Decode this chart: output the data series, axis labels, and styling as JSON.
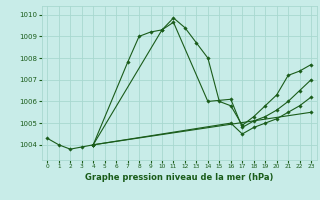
{
  "background_color": "#c8ece8",
  "grid_color": "#a8d8d0",
  "line_color": "#1a5c1a",
  "title": "Graphe pression niveau de la mer (hPa)",
  "xlim": [
    -0.5,
    23.5
  ],
  "ylim": [
    1003.3,
    1010.4
  ],
  "yticks": [
    1004,
    1005,
    1006,
    1007,
    1008,
    1009,
    1010
  ],
  "xticks": [
    0,
    1,
    2,
    3,
    4,
    5,
    6,
    7,
    8,
    9,
    10,
    11,
    12,
    13,
    14,
    15,
    16,
    17,
    18,
    19,
    20,
    21,
    22,
    23
  ],
  "series": [
    {
      "x": [
        0,
        1,
        2,
        3,
        4,
        7,
        8,
        9,
        10,
        11,
        12,
        13,
        14,
        15,
        16,
        17,
        18,
        19,
        20,
        21,
        22,
        23
      ],
      "y": [
        1004.3,
        1004.0,
        1003.8,
        1003.9,
        1004.0,
        1007.8,
        1009.0,
        1009.2,
        1009.3,
        1009.85,
        1009.4,
        1008.7,
        1008.0,
        1006.0,
        1005.8,
        1004.9,
        1005.3,
        1005.8,
        1006.3,
        1007.2,
        1007.4,
        1007.7
      ]
    },
    {
      "x": [
        4,
        10,
        11,
        14,
        16,
        17,
        18,
        19,
        20,
        21,
        22,
        23
      ],
      "y": [
        1004.0,
        1009.3,
        1009.65,
        1006.0,
        1006.1,
        1004.8,
        1005.1,
        1005.3,
        1005.6,
        1006.0,
        1006.5,
        1007.0
      ]
    },
    {
      "x": [
        4,
        16,
        17,
        18,
        19,
        20,
        21,
        22,
        23
      ],
      "y": [
        1004.0,
        1005.0,
        1004.5,
        1004.8,
        1005.0,
        1005.2,
        1005.5,
        1005.8,
        1006.2
      ]
    },
    {
      "x": [
        4,
        23
      ],
      "y": [
        1004.0,
        1005.5
      ]
    }
  ]
}
